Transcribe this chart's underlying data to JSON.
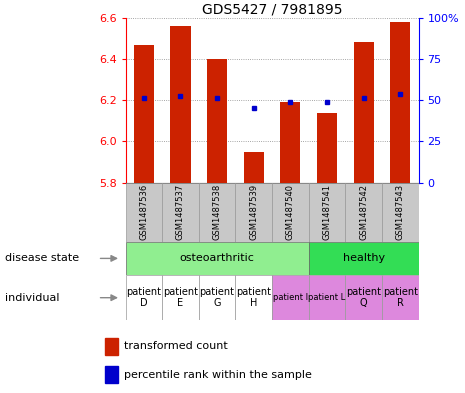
{
  "title": "GDS5427 / 7981895",
  "samples": [
    "GSM1487536",
    "GSM1487537",
    "GSM1487538",
    "GSM1487539",
    "GSM1487540",
    "GSM1487541",
    "GSM1487542",
    "GSM1487543"
  ],
  "red_values": [
    6.47,
    6.56,
    6.4,
    5.95,
    6.19,
    6.14,
    6.48,
    6.58
  ],
  "blue_values": [
    6.21,
    6.22,
    6.21,
    6.16,
    6.19,
    6.19,
    6.21,
    6.23
  ],
  "ylim_left": [
    5.8,
    6.6
  ],
  "ylim_right": [
    0,
    100
  ],
  "yticks_left": [
    5.8,
    6.0,
    6.2,
    6.4,
    6.6
  ],
  "yticks_right": [
    0,
    25,
    50,
    75,
    100
  ],
  "bar_color": "#CC2200",
  "dot_color": "#0000CC",
  "grid_color": "#888888",
  "legend_red": "transformed count",
  "legend_blue": "percentile rank within the sample",
  "oa_color": "#90EE90",
  "healthy_color": "#33DD55",
  "purple_color": "#DD88DD",
  "white_color": "#FFFFFF",
  "gray_color": "#C8C8C8",
  "ind_labels_white": [
    "patient\nD",
    "patient\nE",
    "patient\nG",
    "patient\nH"
  ],
  "ind_labels_purple_small": [
    "patient I",
    "patient L"
  ],
  "ind_labels_purple_big": [
    "patient\nQ",
    "patient\nR"
  ],
  "label_disease": "disease state",
  "label_individual": "individual"
}
